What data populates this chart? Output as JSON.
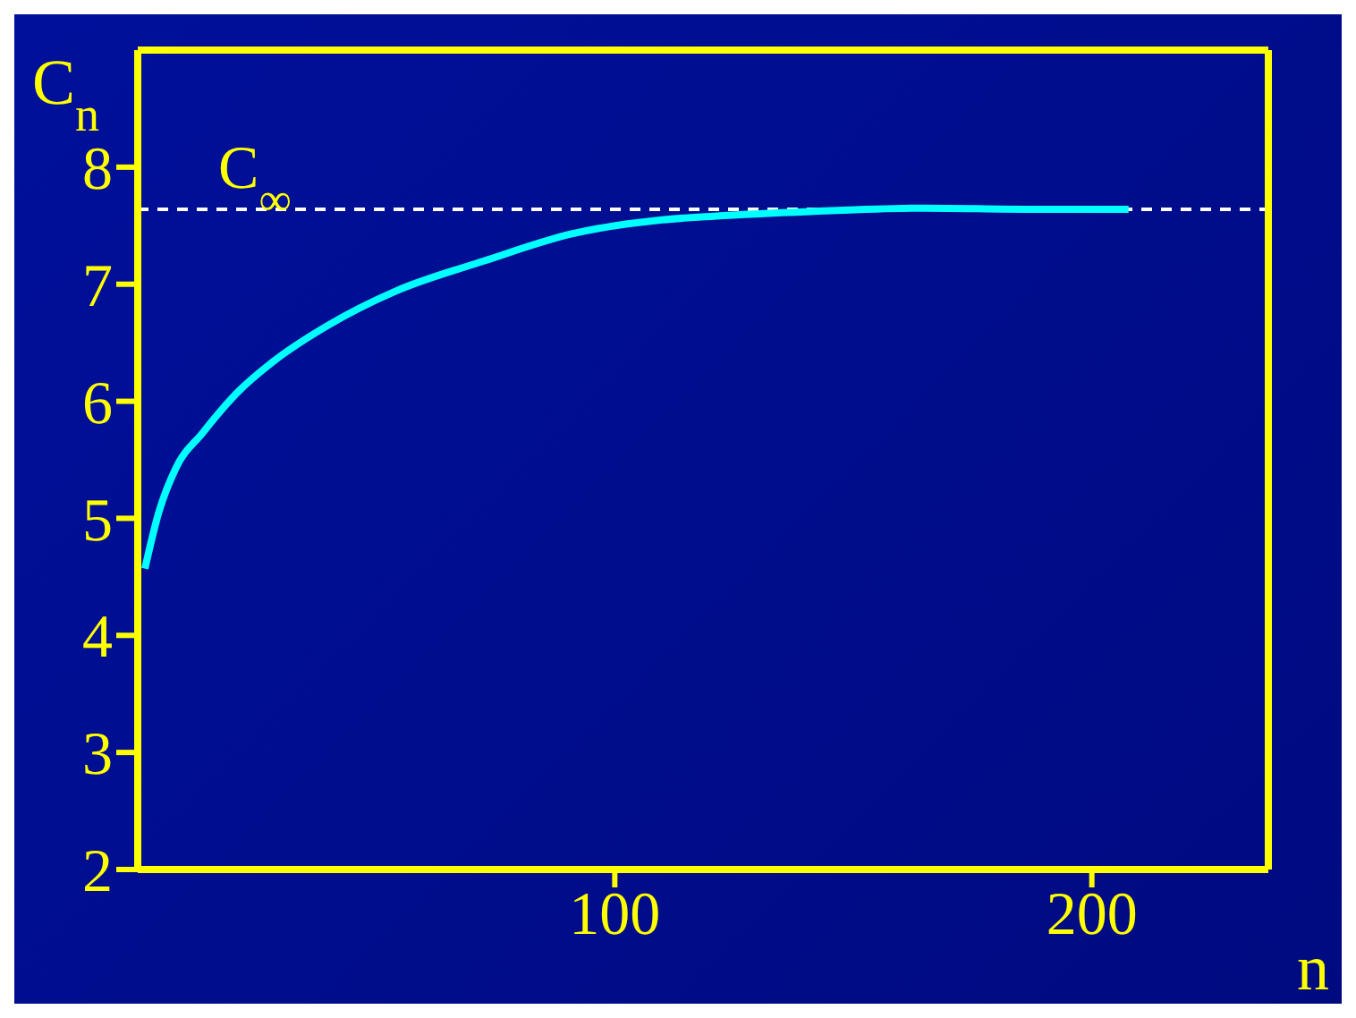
{
  "chart_data": {
    "type": "line",
    "xlabel": "n",
    "ylabel": "C$_{n}$",
    "x": [
      1.5,
      4.4,
      8,
      13.6,
      21,
      28.4,
      39.5,
      54,
      72.7,
      91,
      110,
      120.7,
      141,
      165,
      187,
      207.7
    ],
    "series": [
      {
        "color": "#00ffff",
        "values": [
          4.57,
          5.05,
          5.43,
          5.73,
          6.08,
          6.34,
          6.64,
          6.94,
          7.2,
          7.43,
          7.55,
          7.58,
          7.62,
          7.65,
          7.64,
          7.64
        ]
      }
    ],
    "xlim": [
      0,
      237
    ],
    "xticks": [
      100,
      200
    ],
    "ylim": [
      2,
      9
    ],
    "yticks": [
      2,
      3,
      4,
      5,
      6,
      7,
      8
    ],
    "ref_lines": [
      {
        "axis": "y",
        "value": 7.64,
        "label": "C$_{∞}$",
        "color": "#ffffff",
        "line_style": "dashed"
      }
    ],
    "grid": false,
    "legend": false,
    "marker": "none",
    "line_style": "solid"
  }
}
